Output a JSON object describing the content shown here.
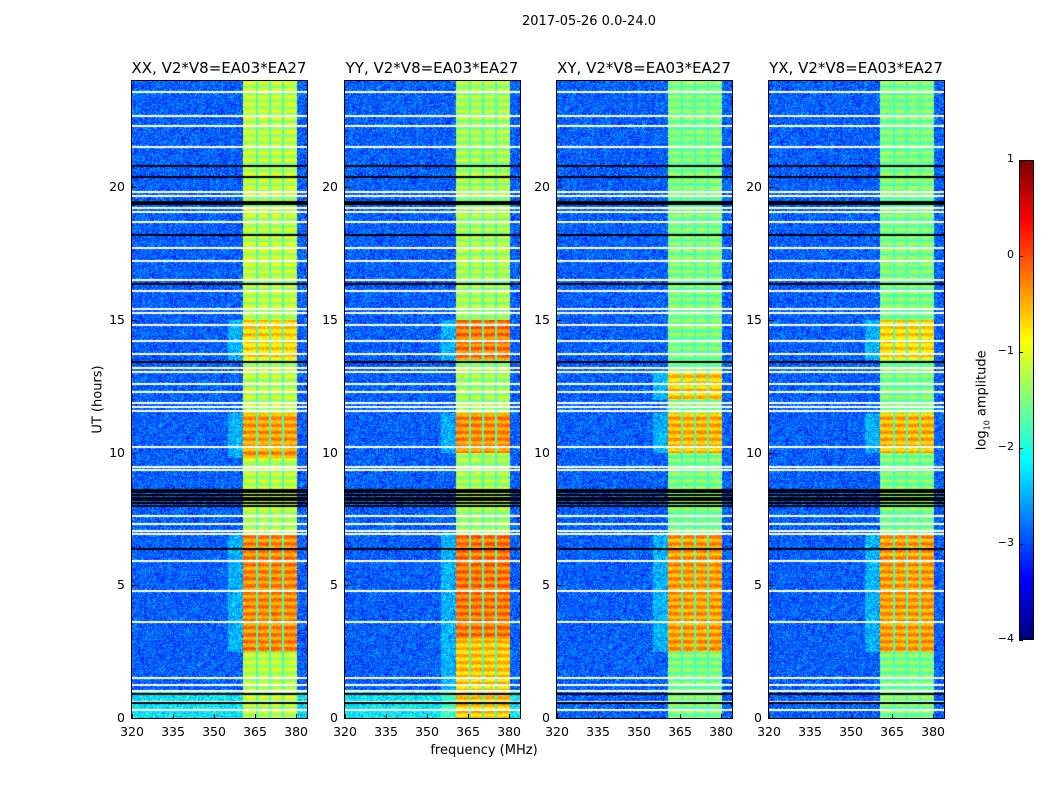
{
  "chart_data": {
    "type": "heatmap",
    "title": "2017-05-26 0.0-24.0",
    "xlabel": "frequency (MHz)",
    "ylabel": "UT (hours)",
    "xlim": [
      320,
      384
    ],
    "ylim": [
      0,
      24
    ],
    "xticks": [
      320,
      335,
      350,
      365,
      380
    ],
    "yticks": [
      0,
      5,
      10,
      15,
      20
    ],
    "colorbar": {
      "label": "log10 amplitude",
      "label_main": "log",
      "label_sub": "10",
      "label_rest": " amplitude",
      "range": [
        -4,
        1
      ],
      "ticks": [
        1,
        0,
        -1,
        -2,
        -3,
        -4
      ],
      "tick_labels": [
        "1",
        "0",
        "−1",
        "−2",
        "−3",
        "−4"
      ],
      "colormap": "jet"
    },
    "background_log_amp": -2.9,
    "band": {
      "freq_range": [
        360.5,
        380
      ],
      "channel_gaps_mhz": [
        365.5,
        370.2,
        375
      ]
    },
    "flagged_white_hours": [
      0.32,
      0.62,
      1.02,
      1.25,
      1.5,
      3.6,
      4.8,
      5.9,
      6.95,
      7.05,
      7.3,
      7.6,
      9.35,
      9.45,
      10.2,
      11.55,
      11.7,
      11.85,
      12.3,
      12.6,
      13.05,
      13.2,
      13.7,
      14.2,
      14.8,
      15.25,
      15.4,
      16.1,
      16.5,
      17.2,
      17.7,
      18.7,
      19.05,
      19.2,
      19.65,
      19.8,
      21.5,
      22.3,
      22.7,
      23.6
    ],
    "flagged_black_hours": [
      0.55,
      0.9,
      6.35,
      8.0,
      8.1,
      8.2,
      8.3,
      8.4,
      8.5,
      8.6,
      13.4,
      16.35,
      18.2,
      19.35,
      19.45,
      20.4,
      20.8
    ],
    "panels": [
      {
        "title": "XX, V2*V8=EA03*EA27",
        "band_log_amp": -1.2,
        "active_hours": [
          [
            2.5,
            7.0,
            -0.3
          ],
          [
            9.8,
            11.5,
            -0.4
          ],
          [
            13.5,
            15.0,
            -0.7
          ]
        ]
      },
      {
        "title": "YY, V2*V8=EA03*EA27",
        "band_log_amp": -1.3,
        "active_hours": [
          [
            3.0,
            7.0,
            -0.2
          ],
          [
            10.0,
            11.5,
            -0.3
          ],
          [
            13.5,
            15.0,
            -0.2
          ],
          [
            0,
            3,
            -0.6
          ]
        ]
      },
      {
        "title": "XY, V2*V8=EA03*EA27",
        "band_log_amp": -1.5,
        "active_hours": [
          [
            2.5,
            7.0,
            -0.4
          ],
          [
            10.0,
            11.5,
            -0.5
          ],
          [
            12.0,
            13.0,
            -0.6
          ]
        ]
      },
      {
        "title": "YX, V2*V8=EA03*EA27",
        "band_log_amp": -1.5,
        "active_hours": [
          [
            2.5,
            7.0,
            -0.4
          ],
          [
            10.0,
            11.5,
            -0.5
          ],
          [
            13.5,
            15.0,
            -0.7
          ]
        ]
      }
    ]
  }
}
